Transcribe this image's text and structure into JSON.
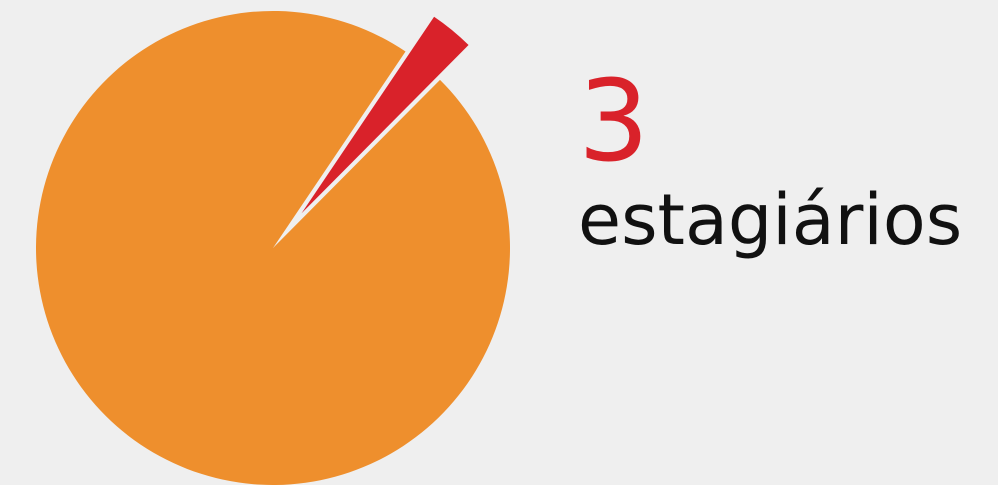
{
  "chart_data": {
    "type": "pie",
    "values": [
      3,
      97
    ],
    "colors": [
      "#d9222a",
      "#ee8f2d"
    ],
    "value_labels": [
      "3",
      null
    ],
    "subtitle": "estagiários"
  }
}
